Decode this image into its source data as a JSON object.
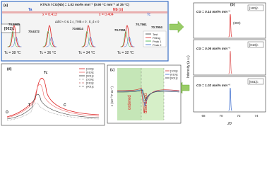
{
  "panel_a": {
    "label": "(a)",
    "direction": "[001]c",
    "title": "KTN:5 / CG(Nb) = 1.02 mol% mm⁻¹ (0.90 °C mm⁻¹ at 35 °C)",
    "ta": "Ta",
    "nb": "Nb (x)",
    "x_left": "x = 0.413",
    "x_right": "x = 0.404",
    "tc": "Tc",
    "condition": "Δd/d ≈ 0 & Σ ε_TMB ≠ 0 ; E_d ≠ 0",
    "peaks": [
      "70.6965",
      "70.6372",
      "70.6814",
      "70.7051",
      "70.7561",
      "70.7904"
    ],
    "temps": [
      "Tc = 38 °C",
      "Tc = 36 °C",
      "Tc = 34 °C",
      "Tc = 32 °C"
    ],
    "legend": [
      "Test",
      "Fitting",
      "Peak 1",
      "Peak 2"
    ]
  },
  "panel_b": {
    "label": "(b)",
    "ylabel": "Intensity (a.u.)",
    "xlabel": "2θ",
    "xticks": [
      "68",
      "70",
      "72",
      "74"
    ],
    "note": "(300)",
    "subplots": [
      {
        "cg": "CG = 0.14 mol% mm⁻¹",
        "direction": "[100]c"
      },
      {
        "cg": "CG = 0.06 mol% mm⁻¹",
        "direction": "[010]c"
      },
      {
        "cg": "CG = 1.02 mol% mm⁻¹",
        "direction": "[001]c"
      }
    ]
  },
  "panel_c": {
    "label": "(c)",
    "ylabel": "ε (10⁻³ F m⁻¹)",
    "ordered": "ordered",
    "disordered": "disordered",
    "legend": [
      "[100]c",
      "[010]c",
      "[001]c"
    ]
  },
  "panel_d": {
    "label": "(d)",
    "tc": "Tc",
    "phases": [
      "O",
      "T",
      "C"
    ],
    "legend": [
      "[100]c",
      "[010]c",
      "[001]c",
      "[100]c",
      "[010]c",
      "[001]c"
    ]
  }
}
